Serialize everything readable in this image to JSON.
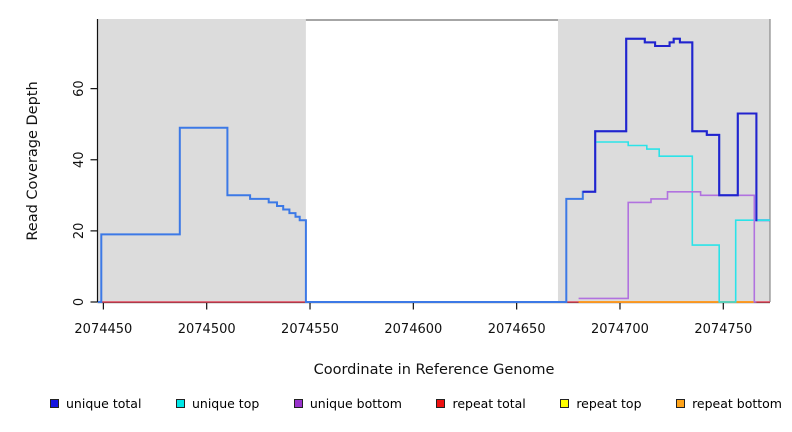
{
  "chart_data": {
    "type": "line",
    "subtype": "step-after-coverage-plot",
    "title": "",
    "xlabel": "Coordinate in Reference Genome",
    "ylabel": "Read Coverage Depth",
    "xlim": [
      2074447.4,
      2074772.6
    ],
    "ylim": [
      0,
      79.3
    ],
    "xticks": [
      2074450,
      2074500,
      2074550,
      2074600,
      2074650,
      2074700,
      2074750
    ],
    "yticks": [
      0,
      20,
      40,
      60
    ],
    "grid": false,
    "plot_background": "#ffffff",
    "shaded_region_color": "#dcdcdc",
    "shaded_regions": [
      {
        "x0": 2074447.4,
        "x1": 2074548,
        "label": "left-gray-block"
      },
      {
        "x0": 2074670,
        "x1": 2074772.6,
        "label": "right-gray-block"
      }
    ],
    "series": [
      {
        "name": "repeat top",
        "color": "#F5E900",
        "lw": 1.6,
        "in_legend": true,
        "steps": [
          [
            2074680,
            0
          ],
          [
            2074765,
            0
          ]
        ]
      },
      {
        "name": "repeat total",
        "color": "#E2485C",
        "lw": 1.6,
        "in_legend": true,
        "steps": [
          [
            2074447.4,
            0
          ],
          [
            2074772.6,
            0
          ]
        ]
      },
      {
        "name": "repeat bottom",
        "color": "#FF9D20",
        "lw": 1.8,
        "in_legend": true,
        "steps": [
          [
            2074680,
            0
          ],
          [
            2074765,
            0
          ]
        ]
      },
      {
        "name": "total (unlabeled)",
        "color": "#3C79E6",
        "lw": 2,
        "in_legend": false,
        "steps": [
          [
            2074447.4,
            0
          ],
          [
            2074449,
            19
          ],
          [
            2074487,
            49
          ],
          [
            2074510,
            30
          ],
          [
            2074521,
            29
          ],
          [
            2074530,
            28
          ],
          [
            2074534,
            27
          ],
          [
            2074537,
            26
          ],
          [
            2074540,
            25
          ],
          [
            2074543,
            24
          ],
          [
            2074545,
            23
          ],
          [
            2074548,
            0
          ],
          [
            2074674,
            29
          ],
          [
            2074682,
            31
          ],
          [
            2074688,
            48
          ],
          [
            2074703,
            74
          ],
          [
            2074712,
            73
          ],
          [
            2074717,
            72
          ],
          [
            2074724,
            73
          ],
          [
            2074726,
            74
          ],
          [
            2074729,
            73
          ],
          [
            2074735,
            48
          ],
          [
            2074742,
            47
          ],
          [
            2074748,
            30
          ],
          [
            2074757,
            53
          ],
          [
            2074766,
            23
          ],
          [
            2074772.6,
            23
          ]
        ]
      },
      {
        "name": "unique top",
        "color": "#2BE3E8",
        "lw": 1.6,
        "in_legend": true,
        "steps": [
          [
            2074688,
            45
          ],
          [
            2074704,
            44
          ],
          [
            2074713,
            43
          ],
          [
            2074719,
            41
          ],
          [
            2074735,
            16
          ],
          [
            2074748,
            0
          ],
          [
            2074756,
            23
          ],
          [
            2074772.6,
            23
          ]
        ]
      },
      {
        "name": "unique bottom",
        "color": "#B172DF",
        "lw": 1.6,
        "in_legend": true,
        "steps": [
          [
            2074680,
            1
          ],
          [
            2074704,
            28
          ],
          [
            2074715,
            29
          ],
          [
            2074723,
            31
          ],
          [
            2074739,
            30
          ],
          [
            2074765,
            0
          ],
          [
            2074766,
            0
          ]
        ]
      },
      {
        "name": "unique total",
        "color": "#2323CE",
        "lw": 2,
        "in_legend": true,
        "steps": [
          [
            2074682,
            31
          ],
          [
            2074688,
            48
          ],
          [
            2074703,
            74
          ],
          [
            2074712,
            73
          ],
          [
            2074717,
            72
          ],
          [
            2074724,
            73
          ],
          [
            2074726,
            74
          ],
          [
            2074729,
            73
          ],
          [
            2074735,
            48
          ],
          [
            2074742,
            47
          ],
          [
            2074748,
            30
          ],
          [
            2074757,
            53
          ],
          [
            2074766,
            23
          ],
          [
            2074766.5,
            23
          ]
        ]
      }
    ],
    "legend": {
      "position": "bottom",
      "entries": [
        {
          "label": "unique total",
          "color": "#1414E0"
        },
        {
          "label": "unique top",
          "color": "#00E8E8"
        },
        {
          "label": "unique bottom",
          "color": "#9933CC"
        },
        {
          "label": "repeat total",
          "color": "#EE1111"
        },
        {
          "label": "repeat top",
          "color": "#FFFF00"
        },
        {
          "label": "repeat bottom",
          "color": "#FFA319"
        }
      ]
    }
  }
}
